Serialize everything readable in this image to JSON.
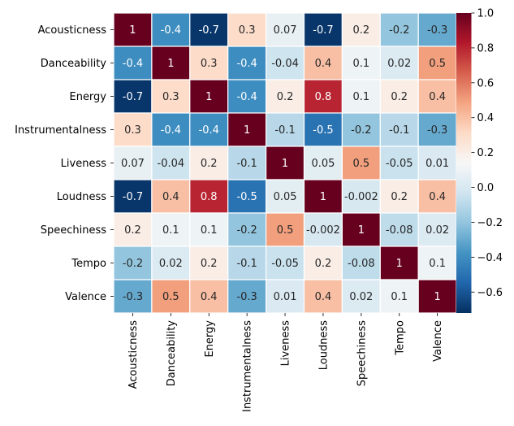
{
  "chart_data": {
    "type": "heatmap",
    "title": "",
    "xlabel": "",
    "ylabel": "",
    "rows": [
      "Acousticness",
      "Danceability",
      "Energy",
      "Instrumentalness",
      "Liveness",
      "Loudness",
      "Speechiness",
      "Tempo",
      "Valence"
    ],
    "columns": [
      "Acousticness",
      "Danceability",
      "Energy",
      "Instrumentalness",
      "Liveness",
      "Loudness",
      "Speechiness",
      "Tempo",
      "Valence"
    ],
    "values": [
      [
        1,
        -0.4,
        -0.7,
        0.3,
        0.07,
        -0.7,
        0.2,
        -0.2,
        -0.3
      ],
      [
        -0.4,
        1,
        0.3,
        -0.4,
        -0.04,
        0.4,
        0.1,
        0.02,
        0.5
      ],
      [
        -0.7,
        0.3,
        1,
        -0.4,
        0.2,
        0.8,
        0.1,
        0.2,
        0.4
      ],
      [
        0.3,
        -0.4,
        -0.4,
        1,
        -0.1,
        -0.5,
        -0.2,
        -0.1,
        -0.3
      ],
      [
        0.07,
        -0.04,
        0.2,
        -0.1,
        1,
        0.05,
        0.5,
        -0.05,
        0.01
      ],
      [
        -0.7,
        0.4,
        0.8,
        -0.5,
        0.05,
        1,
        -0.002,
        0.2,
        0.4
      ],
      [
        0.2,
        0.1,
        0.1,
        -0.2,
        0.5,
        -0.002,
        1,
        -0.08,
        0.02
      ],
      [
        -0.2,
        0.02,
        0.2,
        -0.1,
        -0.05,
        0.2,
        -0.08,
        1,
        0.1
      ],
      [
        -0.3,
        0.5,
        0.4,
        -0.3,
        0.01,
        0.4,
        0.02,
        0.1,
        1
      ]
    ],
    "annotations": [
      [
        "1",
        "-0.4",
        "-0.7",
        "0.3",
        "0.07",
        "-0.7",
        "0.2",
        "-0.2",
        "-0.3"
      ],
      [
        "-0.4",
        "1",
        "0.3",
        "-0.4",
        "-0.04",
        "0.4",
        "0.1",
        "0.02",
        "0.5"
      ],
      [
        "-0.7",
        "0.3",
        "1",
        "-0.4",
        "0.2",
        "0.8",
        "0.1",
        "0.2",
        "0.4"
      ],
      [
        "0.3",
        "-0.4",
        "-0.4",
        "1",
        "-0.1",
        "-0.5",
        "-0.2",
        "-0.1",
        "-0.3"
      ],
      [
        "0.07",
        "-0.04",
        "0.2",
        "-0.1",
        "1",
        "0.05",
        "0.5",
        "-0.05",
        "0.01"
      ],
      [
        "-0.7",
        "0.4",
        "0.8",
        "-0.5",
        "0.05",
        "1",
        "-0.002",
        "0.2",
        "0.4"
      ],
      [
        "0.2",
        "0.1",
        "0.1",
        "-0.2",
        "0.5",
        "-0.002",
        "1",
        "-0.08",
        "0.02"
      ],
      [
        "-0.2",
        "0.02",
        "0.2",
        "-0.1",
        "-0.05",
        "0.2",
        "-0.08",
        "1",
        "0.1"
      ],
      [
        "-0.3",
        "0.5",
        "0.4",
        "-0.3",
        "0.01",
        "0.4",
        "0.02",
        "0.1",
        "1"
      ]
    ],
    "colorscale": "RdBu_r",
    "vmin": -0.72,
    "vmax": 1.0,
    "colorbar": {
      "ticks": [
        1.0,
        0.8,
        0.6,
        0.4,
        0.2,
        0.0,
        -0.2,
        -0.4,
        -0.6
      ],
      "tick_labels": [
        "1.0",
        "0.8",
        "0.6",
        "0.4",
        "0.2",
        "0.0",
        "−0.2",
        "−0.4",
        "−0.6"
      ],
      "placement": "right"
    },
    "cell_separator_color": "#ffffff",
    "grid": false
  }
}
